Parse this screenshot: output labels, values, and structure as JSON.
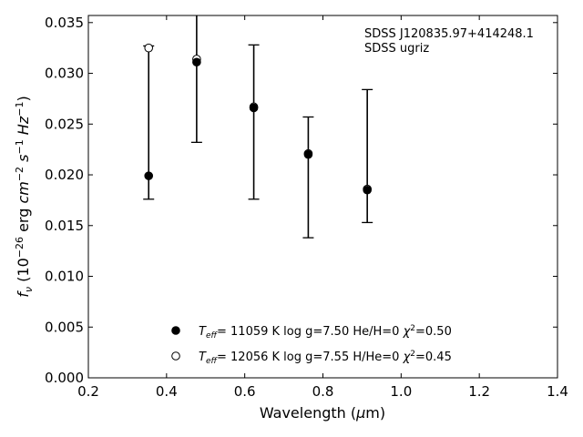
{
  "chart_data": {
    "type": "scatter",
    "annotation": [
      "SDSS J120835.97+414248.1",
      "SDSS ugriz"
    ],
    "xlabel": "Wavelength (μm)",
    "ylabel": "f_ν (10^-26 erg cm^-2 s^-1 Hz^-1)",
    "xlim": [
      0.2,
      1.4
    ],
    "ylim": [
      0.0,
      0.0357
    ],
    "xticks": [
      0.2,
      0.4,
      0.6,
      0.8,
      1.0,
      1.2,
      1.4
    ],
    "xtick_labels": [
      "0.2",
      "0.4",
      "0.6",
      "0.8",
      "1.0",
      "1.2",
      "1.4"
    ],
    "yticks": [
      0.0,
      0.005,
      0.01,
      0.015,
      0.02,
      0.025,
      0.03,
      0.035
    ],
    "ytick_labels": [
      "0.000",
      "0.005",
      "0.010",
      "0.015",
      "0.020",
      "0.025",
      "0.030",
      "0.035"
    ],
    "grid": false,
    "legend_position": "bottom-center",
    "observed": {
      "x": [
        0.3543,
        0.477,
        0.6231,
        0.7625,
        0.9134
      ],
      "low": [
        0.0176,
        0.0232,
        0.0176,
        0.0138,
        0.0153
      ],
      "high": [
        0.0327,
        0.0357,
        0.0328,
        0.0257,
        0.0284
      ]
    },
    "series": [
      {
        "marker": "filled-circle",
        "legend": "T_eff= 11059 K  log g=7.50  He/H=0  χ²=0.50",
        "x": [
          0.3543,
          0.477,
          0.6231,
          0.7625,
          0.9134
        ],
        "values": [
          0.0199,
          0.0311,
          0.0266,
          0.022,
          0.0185
        ]
      },
      {
        "marker": "open-circle",
        "legend": "T_eff= 12056 K  log g=7.55  H/He=0  χ²=0.45",
        "x": [
          0.3543,
          0.477,
          0.6231,
          0.7625,
          0.9134
        ],
        "values": [
          0.0325,
          0.0314,
          0.0267,
          0.0221,
          0.0186
        ]
      }
    ]
  }
}
